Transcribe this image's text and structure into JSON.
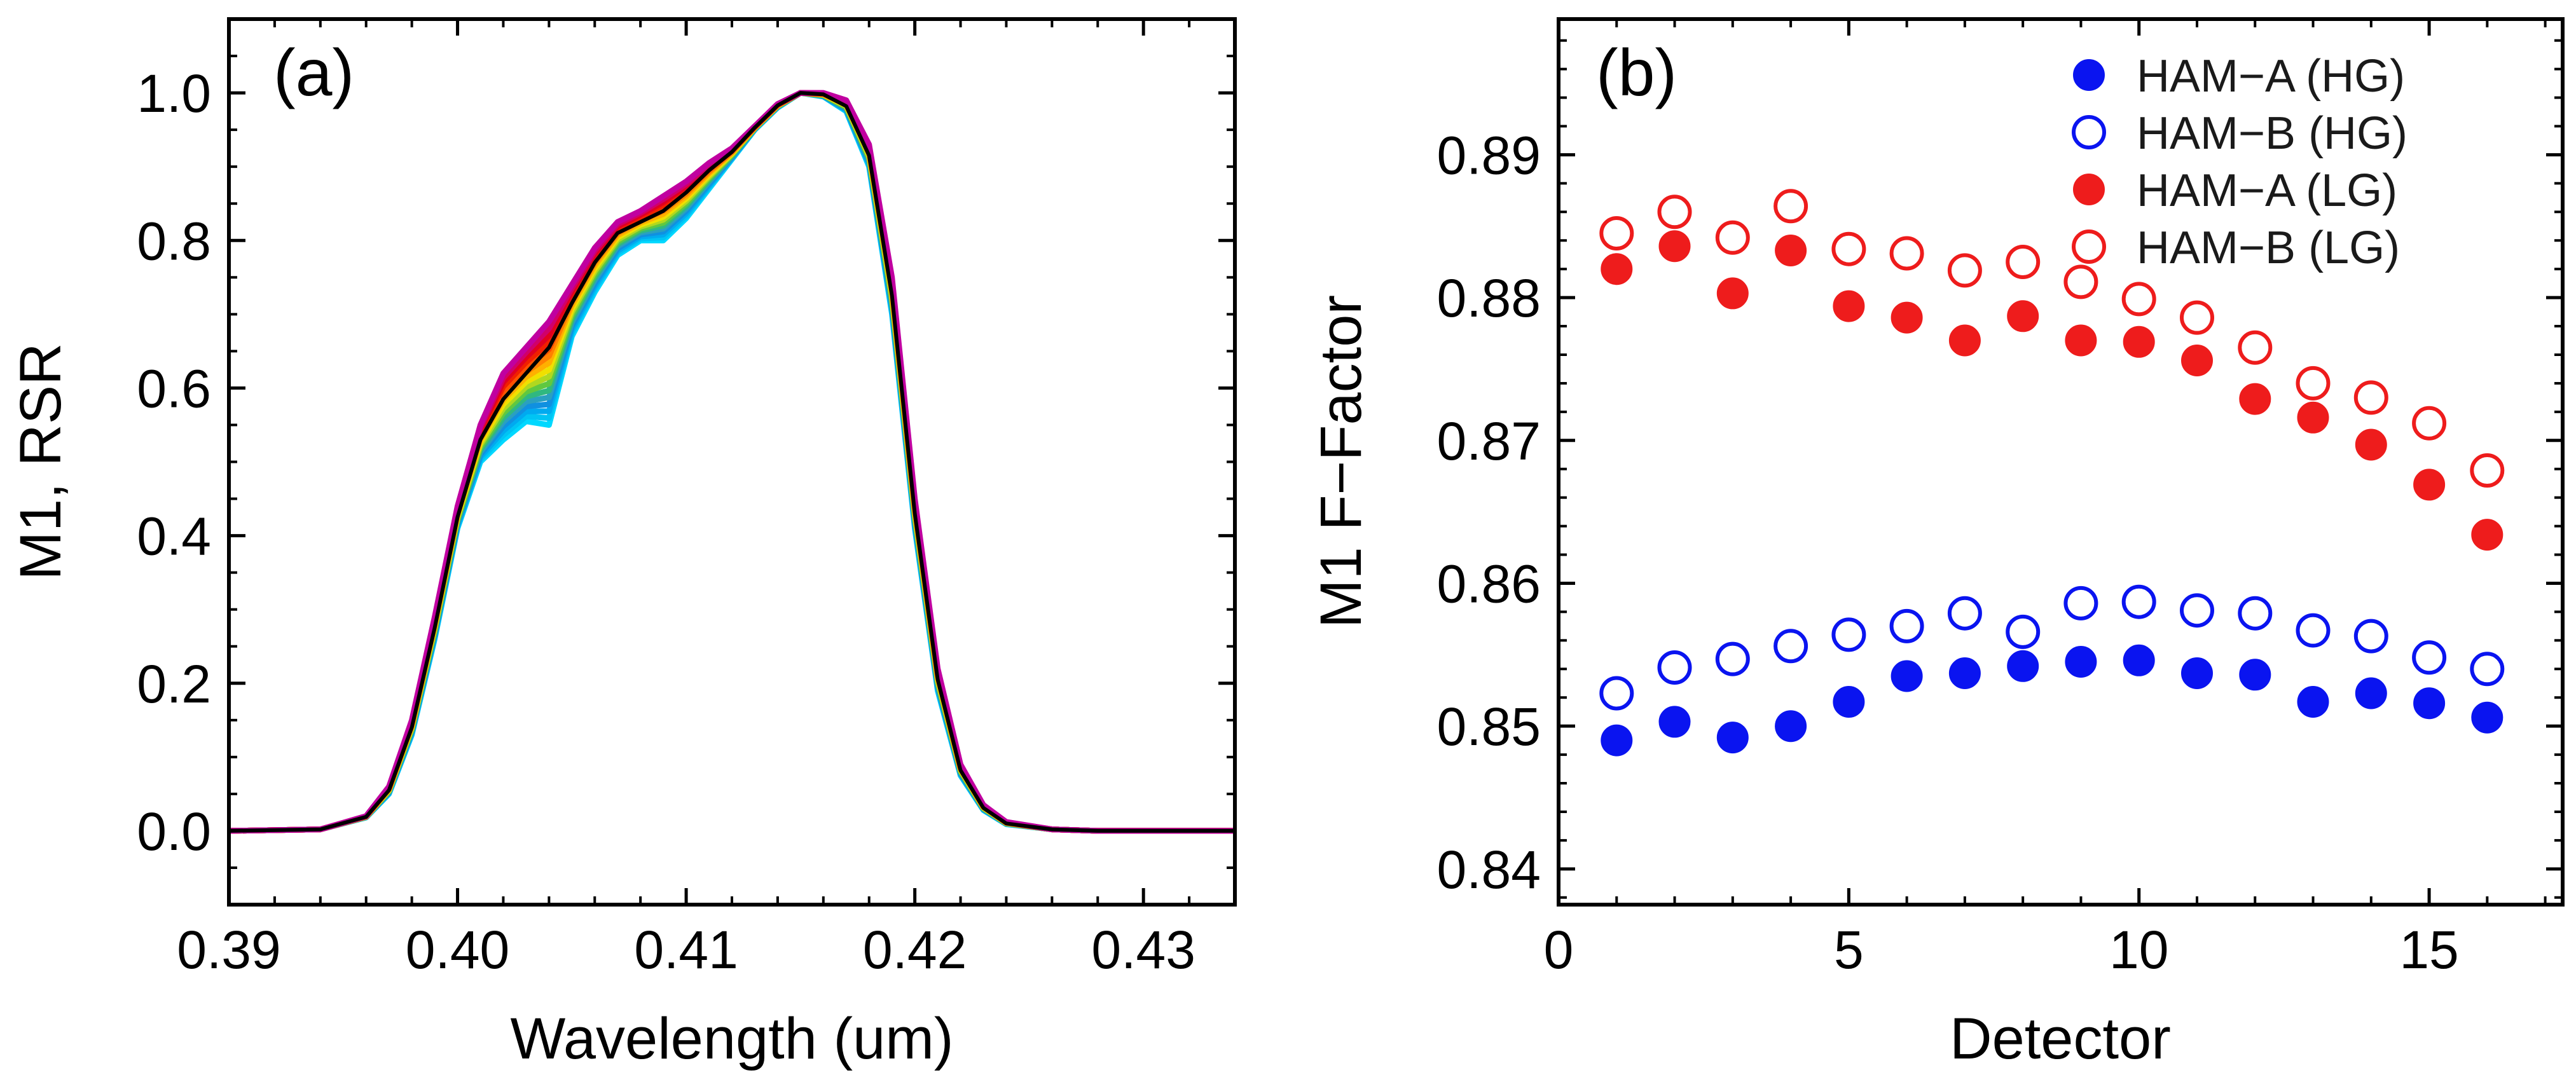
{
  "chart_data": [
    {
      "type": "line",
      "panel": "(a)",
      "xlabel": "Wavelength (um)",
      "ylabel": "M1, RSR",
      "xlim": [
        0.39,
        0.434
      ],
      "ylim": [
        -0.1,
        1.1
      ],
      "xticks": [
        0.39,
        0.4,
        0.41,
        0.42,
        0.43
      ],
      "xtick_labels": [
        "0.39",
        "0.40",
        "0.41",
        "0.42",
        "0.43"
      ],
      "yticks": [
        0.0,
        0.2,
        0.4,
        0.6,
        0.8,
        1.0
      ],
      "ytick_labels": [
        "0.0",
        "0.2",
        "0.4",
        "0.6",
        "0.8",
        "1.0"
      ],
      "grid": false,
      "series_description": "Detector-dependent RSR curves, rainbow colored, plus a black mean curve",
      "x": [
        0.39,
        0.394,
        0.396,
        0.397,
        0.398,
        0.399,
        0.4,
        0.401,
        0.402,
        0.403,
        0.404,
        0.405,
        0.406,
        0.407,
        0.408,
        0.409,
        0.41,
        0.411,
        0.412,
        0.413,
        0.414,
        0.415,
        0.416,
        0.417,
        0.418,
        0.419,
        0.42,
        0.421,
        0.422,
        0.423,
        0.424,
        0.426,
        0.428,
        0.434
      ],
      "envelope_upper": [
        0,
        0.002,
        0.02,
        0.06,
        0.15,
        0.29,
        0.44,
        0.55,
        0.62,
        0.655,
        0.69,
        0.74,
        0.79,
        0.825,
        0.84,
        0.86,
        0.88,
        0.905,
        0.925,
        0.955,
        0.985,
        1.0,
        1.0,
        0.99,
        0.93,
        0.75,
        0.45,
        0.22,
        0.09,
        0.035,
        0.012,
        0.002,
        0,
        0
      ],
      "envelope_lower": [
        0,
        0.002,
        0.018,
        0.05,
        0.13,
        0.26,
        0.41,
        0.5,
        0.53,
        0.555,
        0.55,
        0.67,
        0.73,
        0.78,
        0.8,
        0.8,
        0.83,
        0.87,
        0.91,
        0.95,
        0.98,
        1.0,
        0.995,
        0.975,
        0.9,
        0.7,
        0.41,
        0.19,
        0.075,
        0.028,
        0.009,
        0.002,
        0,
        0
      ],
      "mean": [
        0,
        0.002,
        0.019,
        0.055,
        0.14,
        0.275,
        0.425,
        0.53,
        0.585,
        0.62,
        0.655,
        0.715,
        0.77,
        0.81,
        0.825,
        0.84,
        0.865,
        0.895,
        0.92,
        0.953,
        0.983,
        1.0,
        0.998,
        0.982,
        0.915,
        0.725,
        0.43,
        0.205,
        0.082,
        0.031,
        0.01,
        0.002,
        0,
        0
      ]
    },
    {
      "type": "scatter",
      "panel": "(b)",
      "xlabel": "Detector",
      "ylabel": "M1 F−Factor",
      "xlim": [
        0,
        17.3
      ],
      "ylim": [
        0.8375,
        0.8995
      ],
      "xticks": [
        0,
        5,
        10,
        15
      ],
      "xtick_labels": [
        "0",
        "5",
        "10",
        "15"
      ],
      "yticks": [
        0.84,
        0.85,
        0.86,
        0.87,
        0.88,
        0.89
      ],
      "ytick_labels": [
        "0.84",
        "0.85",
        "0.86",
        "0.87",
        "0.88",
        "0.89"
      ],
      "grid": false,
      "legend_position": "top-right",
      "x": [
        1,
        2,
        3,
        4,
        5,
        6,
        7,
        8,
        9,
        10,
        11,
        12,
        13,
        14,
        15,
        16
      ],
      "series": [
        {
          "name": "HAM−A (HG)",
          "color": "#0a14f0",
          "filled": true,
          "values": [
            0.849,
            0.8503,
            0.8492,
            0.85,
            0.8517,
            0.8535,
            0.8537,
            0.8542,
            0.8545,
            0.8546,
            0.8537,
            0.8536,
            0.8517,
            0.8523,
            0.8516,
            0.8506
          ]
        },
        {
          "name": "HAM−B (HG)",
          "color": "#0a14f0",
          "filled": false,
          "values": [
            0.8523,
            0.8541,
            0.8547,
            0.8556,
            0.8564,
            0.857,
            0.8579,
            0.8566,
            0.8586,
            0.8587,
            0.8581,
            0.8579,
            0.8567,
            0.8563,
            0.8548,
            0.854
          ]
        },
        {
          "name": "HAM−A (LG)",
          "color": "#ee1c1c",
          "filled": true,
          "values": [
            0.882,
            0.8836,
            0.8803,
            0.8833,
            0.8794,
            0.8786,
            0.877,
            0.8787,
            0.877,
            0.8769,
            0.8756,
            0.8729,
            0.8716,
            0.8697,
            0.8669,
            0.8634
          ]
        },
        {
          "name": "HAM−B (LG)",
          "color": "#ee1c1c",
          "filled": false,
          "values": [
            0.8845,
            0.886,
            0.8842,
            0.8864,
            0.8834,
            0.8831,
            0.8819,
            0.8825,
            0.8811,
            0.8799,
            0.8786,
            0.8765,
            0.874,
            0.873,
            0.8712,
            0.8679
          ]
        }
      ]
    }
  ]
}
